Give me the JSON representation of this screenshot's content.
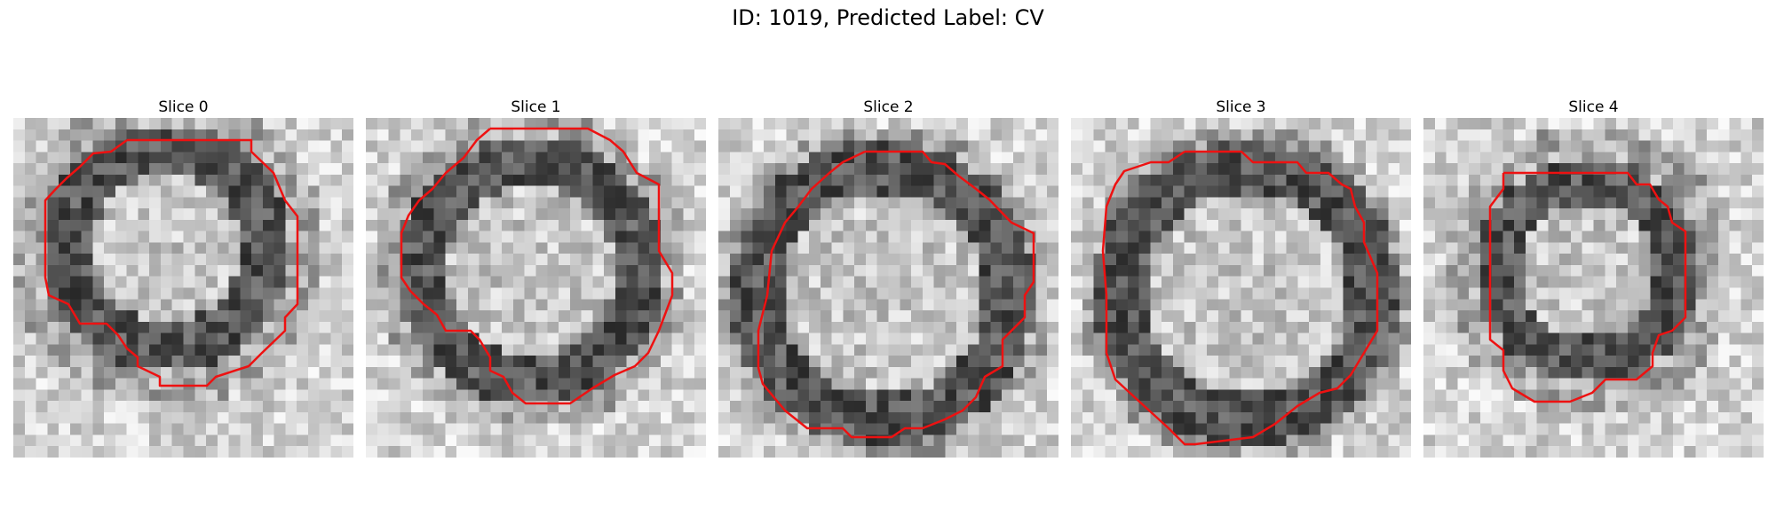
{
  "figure": {
    "title": "ID: 1019, Predicted Label: CV"
  },
  "colors": {
    "contour": "#ee1111"
  },
  "slices": [
    {
      "title": "Slice 0"
    },
    {
      "title": "Slice 1"
    },
    {
      "title": "Slice 2"
    },
    {
      "title": "Slice 3"
    },
    {
      "title": "Slice 4"
    }
  ]
}
